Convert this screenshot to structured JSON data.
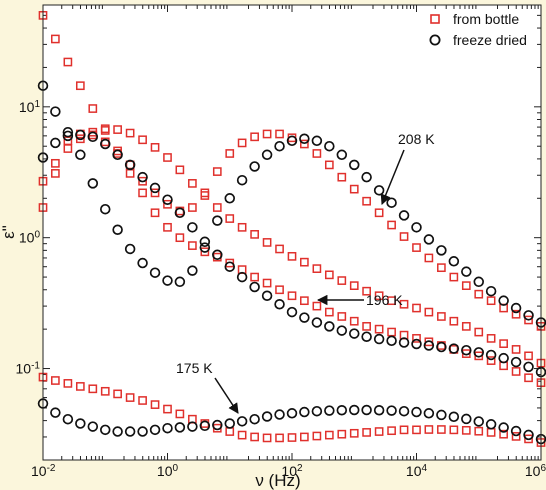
{
  "chart_data": {
    "type": "scatter",
    "xscale": "log",
    "yscale": "log",
    "xlim": [
      0.01,
      1000000
    ],
    "ylim": [
      0.02,
      60
    ],
    "xlabel": "ν (Hz)",
    "ylabel": "ε\"",
    "grid": false,
    "legend_position": "top-right",
    "xticks": [
      {
        "value": 0.01,
        "label": "10^-2"
      },
      {
        "value": 1,
        "label": "10^0"
      },
      {
        "value": 100,
        "label": "10^2"
      },
      {
        "value": 10000,
        "label": "10^4"
      },
      {
        "value": 1000000,
        "label": "10^6"
      }
    ],
    "yticks": [
      {
        "value": 0.1,
        "label": "10^-1"
      },
      {
        "value": 1,
        "label": "10^0"
      },
      {
        "value": 10,
        "label": "10^1"
      }
    ],
    "legend": [
      {
        "label": "from bottle",
        "marker": "square",
        "color": "#e0302c"
      },
      {
        "label": "freeze dried",
        "marker": "circle",
        "color": "#111111"
      }
    ],
    "annotations": [
      {
        "text": "208 K",
        "x": 2000,
        "y": 1.8
      },
      {
        "text": "196 K",
        "x": 120,
        "y": 0.33
      },
      {
        "text": "175 K",
        "x": 10,
        "y": 0.032
      }
    ],
    "series": [
      {
        "name": "from bottle",
        "marker": "square",
        "color": "#e0302c",
        "x": [
          0.01,
          0.0158,
          0.0251,
          0.0398,
          0.0631,
          0.1,
          0.158,
          0.251,
          0.398,
          0.631,
          1,
          1.58,
          2.51,
          3.98,
          6.31,
          10,
          15.8,
          25.1,
          39.8,
          63.1,
          100,
          158,
          251,
          398,
          631,
          1000,
          1580,
          2510,
          3980,
          6310,
          10000,
          15800,
          25100,
          39800,
          63100,
          100000,
          158000,
          251000,
          398000,
          631000,
          1000000
        ],
        "y": [
          2.7,
          3.7,
          4.8,
          5.7,
          6.4,
          6.8,
          6.7,
          6.3,
          5.6,
          4.9,
          4.1,
          3.3,
          2.6,
          2.1,
          1.7,
          1.4,
          1.2,
          1.06,
          0.92,
          0.82,
          0.72,
          0.65,
          0.58,
          0.52,
          0.47,
          0.43,
          0.39,
          0.36,
          0.33,
          0.31,
          0.29,
          0.27,
          0.25,
          0.23,
          0.21,
          0.19,
          0.17,
          0.155,
          0.14,
          0.125,
          0.11
        ]
      },
      {
        "name": "",
        "marker": "square",
        "color": "#e0302c",
        "x": [
          0.01,
          0.0158,
          0.0251,
          0.0398,
          0.0631,
          0.1,
          0.158,
          0.251,
          0.398,
          0.631,
          1,
          1.58,
          2.51,
          3.98,
          6.31,
          10,
          15.8,
          25.1,
          39.8,
          63.1,
          100,
          158,
          251,
          398,
          631,
          1000,
          1580,
          2510,
          3980,
          6310,
          10000,
          15800,
          25100,
          39800,
          63100,
          100000,
          158000,
          251000,
          398000,
          631000,
          1000000
        ],
        "y": [
          50,
          33,
          22,
          14.5,
          9.7,
          6.6,
          4.6,
          3.1,
          2.2,
          1.55,
          1.2,
          1.0,
          0.87,
          0.78,
          0.71,
          0.64,
          0.57,
          0.5,
          0.45,
          0.4,
          0.36,
          0.33,
          0.3,
          0.27,
          0.25,
          0.23,
          0.21,
          0.2,
          0.19,
          0.18,
          0.17,
          0.16,
          0.15,
          0.14,
          0.13,
          0.125,
          0.115,
          0.105,
          0.095,
          0.085,
          0.078
        ]
      },
      {
        "name": "",
        "marker": "square",
        "color": "#e0302c",
        "x": [
          0.01,
          0.0158,
          0.0251,
          0.0398,
          0.0631,
          0.1,
          0.158,
          0.251,
          0.398,
          0.631,
          1,
          1.58,
          2.51,
          3.98,
          6.31,
          10,
          15.8,
          25.1,
          39.8,
          63.1,
          100,
          158,
          251,
          398,
          631,
          1000,
          1580,
          2510,
          3980,
          6310,
          10000,
          15800,
          25100,
          39800,
          63100,
          100000,
          158000,
          251000,
          398000,
          631000,
          1000000
        ],
        "y": [
          1.7,
          3.1,
          5.5,
          6.2,
          6.1,
          5.4,
          4.4,
          3.6,
          2.7,
          2.2,
          1.8,
          1.6,
          1.7,
          2.2,
          3.2,
          4.4,
          5.3,
          5.9,
          6.2,
          6.2,
          5.8,
          5.2,
          4.4,
          3.6,
          2.9,
          2.35,
          1.9,
          1.55,
          1.25,
          1.02,
          0.84,
          0.7,
          0.59,
          0.5,
          0.43,
          0.37,
          0.33,
          0.29,
          0.26,
          0.235,
          0.21
        ]
      },
      {
        "name": "",
        "marker": "square",
        "color": "#e0302c",
        "x": [
          0.01,
          0.0158,
          0.0251,
          0.0398,
          0.0631,
          0.1,
          0.158,
          0.251,
          0.398,
          0.631,
          1,
          1.58,
          2.51,
          3.98,
          6.31,
          10,
          15.8,
          25.1,
          39.8,
          63.1,
          100,
          158,
          251,
          398,
          631,
          1000,
          1580,
          2510,
          3980,
          6310,
          10000,
          15800,
          25100,
          39800,
          63100,
          100000,
          158000,
          251000,
          398000,
          631000,
          1000000
        ],
        "y": [
          0.086,
          0.081,
          0.077,
          0.073,
          0.07,
          0.067,
          0.064,
          0.06,
          0.057,
          0.053,
          0.049,
          0.045,
          0.041,
          0.038,
          0.035,
          0.033,
          0.031,
          0.03,
          0.0295,
          0.0295,
          0.0297,
          0.03,
          0.0305,
          0.031,
          0.0315,
          0.032,
          0.0325,
          0.033,
          0.0335,
          0.034,
          0.034,
          0.0342,
          0.0342,
          0.034,
          0.0337,
          0.0332,
          0.0325,
          0.0315,
          0.0303,
          0.029,
          0.0272
        ]
      },
      {
        "name": "freeze dried",
        "marker": "circle",
        "color": "#111111",
        "x": [
          0.01,
          0.0158,
          0.0251,
          0.0398,
          0.0631,
          0.1,
          0.158,
          0.251,
          0.398,
          0.631,
          1,
          1.58,
          2.51,
          3.98,
          6.31,
          10,
          15.8,
          25.1,
          39.8,
          63.1,
          100,
          158,
          251,
          398,
          631,
          1000,
          1580,
          2510,
          3980,
          6310,
          10000,
          15800,
          25100,
          39800,
          63100,
          100000,
          158000,
          251000,
          398000,
          631000,
          1000000
        ],
        "y": [
          14.5,
          9.2,
          6.4,
          4.3,
          2.6,
          1.65,
          1.15,
          0.82,
          0.64,
          0.54,
          0.47,
          0.46,
          0.56,
          0.84,
          1.35,
          2.0,
          2.75,
          3.5,
          4.3,
          5.0,
          5.5,
          5.7,
          5.5,
          5.0,
          4.3,
          3.6,
          2.9,
          2.3,
          1.85,
          1.48,
          1.2,
          0.97,
          0.8,
          0.66,
          0.55,
          0.46,
          0.39,
          0.33,
          0.29,
          0.255,
          0.225
        ]
      },
      {
        "name": "",
        "marker": "circle",
        "color": "#111111",
        "x": [
          0.01,
          0.0158,
          0.0251,
          0.0398,
          0.0631,
          0.1,
          0.158,
          0.251,
          0.398,
          0.631,
          1,
          1.58,
          2.51,
          3.98,
          6.31,
          10,
          15.8,
          25.1,
          39.8,
          63.1,
          100,
          158,
          251,
          398,
          631,
          1000,
          1580,
          2510,
          3980,
          6310,
          10000,
          15800,
          25100,
          39800,
          63100,
          100000,
          158000,
          251000,
          398000,
          631000,
          1000000
        ],
        "y": [
          4.1,
          5.3,
          6.0,
          6.1,
          5.9,
          5.2,
          4.3,
          3.6,
          2.9,
          2.4,
          1.95,
          1.55,
          1.2,
          0.93,
          0.74,
          0.6,
          0.5,
          0.42,
          0.36,
          0.31,
          0.27,
          0.245,
          0.225,
          0.21,
          0.195,
          0.185,
          0.175,
          0.168,
          0.163,
          0.158,
          0.154,
          0.15,
          0.146,
          0.142,
          0.138,
          0.133,
          0.127,
          0.12,
          0.112,
          0.103,
          0.094
        ]
      },
      {
        "name": "",
        "marker": "circle",
        "color": "#111111",
        "x": [
          0.01,
          0.0158,
          0.0251,
          0.0398,
          0.0631,
          0.1,
          0.158,
          0.251,
          0.398,
          0.631,
          1,
          1.58,
          2.51,
          3.98,
          6.31,
          10,
          15.8,
          25.1,
          39.8,
          63.1,
          100,
          158,
          251,
          398,
          631,
          1000,
          1580,
          2510,
          3980,
          6310,
          10000,
          15800,
          25100,
          39800,
          63100,
          100000,
          158000,
          251000,
          398000,
          631000,
          1000000
        ],
        "y": [
          0.054,
          0.046,
          0.041,
          0.038,
          0.036,
          0.034,
          0.033,
          0.033,
          0.033,
          0.034,
          0.035,
          0.0355,
          0.036,
          0.0365,
          0.037,
          0.038,
          0.0395,
          0.041,
          0.043,
          0.0445,
          0.0455,
          0.0465,
          0.0472,
          0.0477,
          0.048,
          0.0482,
          0.0482,
          0.048,
          0.0477,
          0.0472,
          0.0465,
          0.0455,
          0.0442,
          0.0428,
          0.0412,
          0.0394,
          0.0375,
          0.0354,
          0.0333,
          0.0311,
          0.0289
        ]
      }
    ]
  }
}
